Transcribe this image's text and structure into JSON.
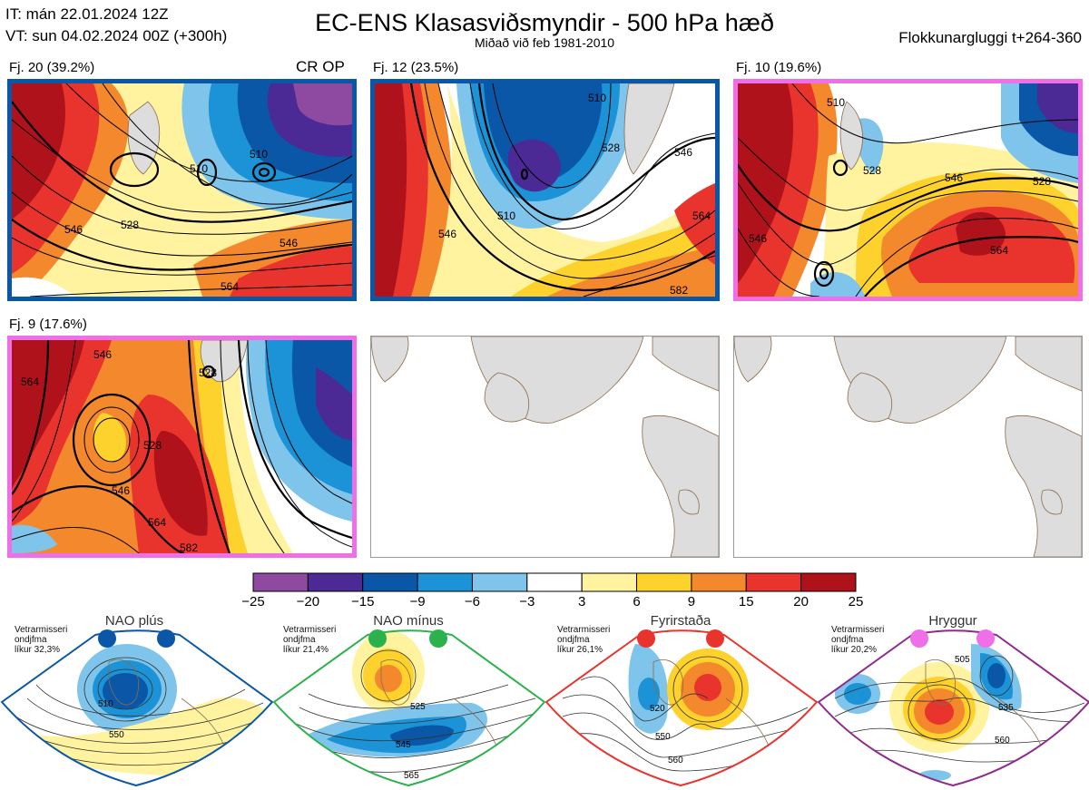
{
  "header": {
    "it_line": "IT: mán 22.01.2024 12Z",
    "vt_line": "VT: sun 04.02.2024 00Z  (+300h)",
    "title": "EC-ENS Klasasviðsmyndir - 500 hPa hæð",
    "subtitle": "Miðað við feb 1981-2010",
    "window": "Flokkunargluggi t+264-360"
  },
  "panels": [
    {
      "label": "Fj. 20 (39.2%)",
      "extra": "CR OP",
      "border": "#0a57a8",
      "contours": [
        "510",
        "510",
        "528",
        "546",
        "546",
        "564"
      ]
    },
    {
      "label": "Fj. 12 (23.5%)",
      "border": "#0a57a8",
      "contours": [
        "510",
        "510",
        "528",
        "546",
        "546",
        "564",
        "582"
      ]
    },
    {
      "label": "Fj. 10 (19.6%)",
      "border": "#ee6fe8",
      "contours": [
        "510",
        "528",
        "528",
        "546",
        "546",
        "564"
      ]
    },
    {
      "label": "Fj. 9 (17.6%)",
      "border": "#ee6fe8",
      "contours": [
        "528",
        "528",
        "546",
        "546",
        "564",
        "564",
        "582"
      ]
    }
  ],
  "colorbar": {
    "ticks": [
      "−25",
      "−20",
      "−15",
      "−9",
      "−6",
      "−3",
      "3",
      "6",
      "9",
      "15",
      "20",
      "25"
    ],
    "colors": [
      "#8e4aa0",
      "#4b2a96",
      "#0a57a8",
      "#1b93d6",
      "#7fc4ea",
      "#ffffff",
      "#fff3a0",
      "#fdd22d",
      "#f4882d",
      "#e8342c",
      "#b0121c"
    ]
  },
  "regimes": [
    {
      "name": "NAO plús",
      "note": [
        "Vetrarmisseri",
        "ondjfma",
        "líkur 32,3%"
      ],
      "color": "#0a57a8",
      "labels": [
        "510",
        "550"
      ]
    },
    {
      "name": "NAO mínus",
      "note": [
        "Vetrarmisseri",
        "ondjfma",
        "líkur 21,4%"
      ],
      "color": "#2bb24c",
      "labels": [
        "525",
        "545",
        "565"
      ]
    },
    {
      "name": "Fyrirstaða",
      "note": [
        "Vetrarmisseri",
        "ondjfma",
        "líkur 26,1%"
      ],
      "color": "#e8342c",
      "labels": [
        "520",
        "550",
        "560"
      ]
    },
    {
      "name": "Hryggur",
      "note": [
        "Vetrarmisseri",
        "ondjfma",
        "líkur 20,2%"
      ],
      "color": "#ee6fe8",
      "labels": [
        "505",
        "535",
        "560"
      ]
    }
  ]
}
